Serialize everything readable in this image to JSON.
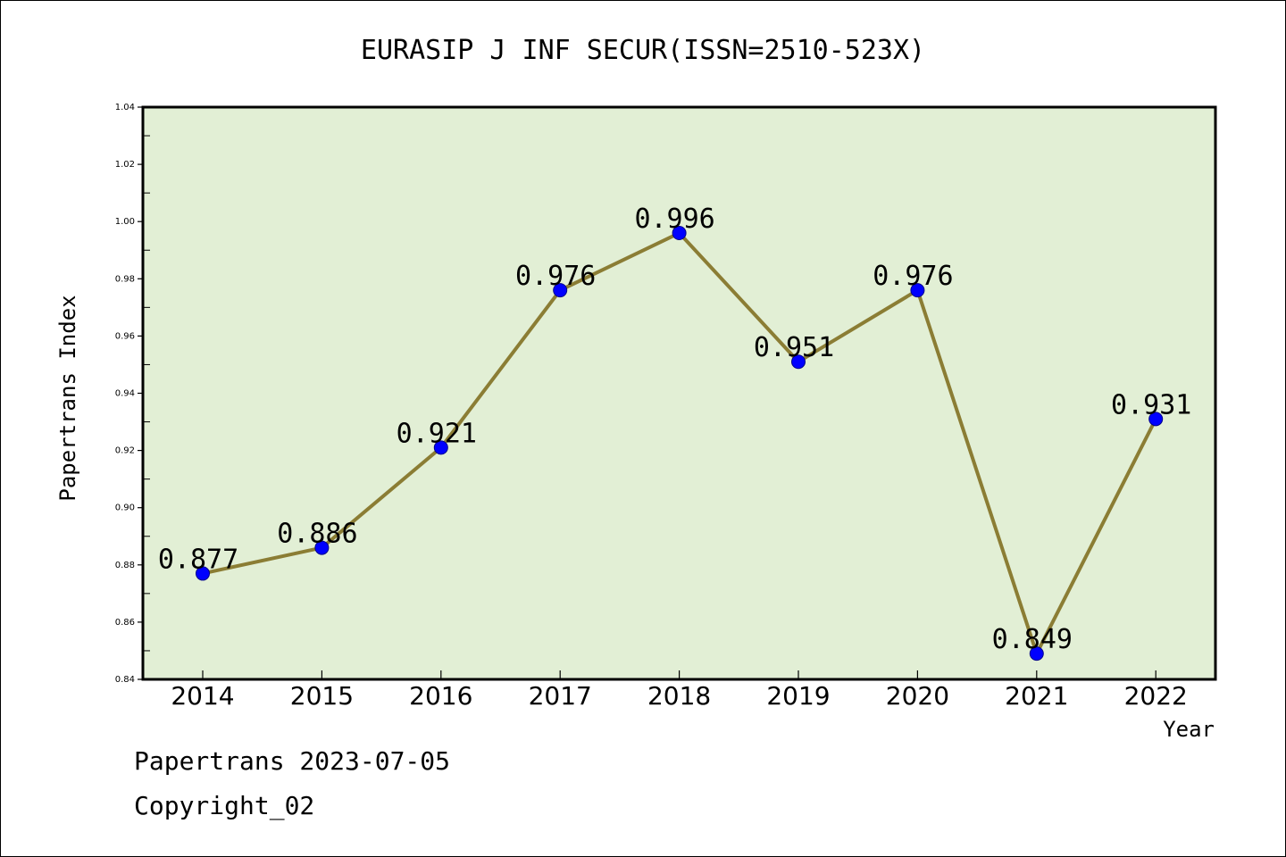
{
  "chart_data": {
    "type": "line",
    "title": "EURASIP J INF SECUR(ISSN=2510-523X)",
    "xlabel": "Year",
    "ylabel": "Papertrans Index",
    "categories": [
      "2014",
      "2015",
      "2016",
      "2017",
      "2018",
      "2019",
      "2020",
      "2021",
      "2022"
    ],
    "series": [
      {
        "values": [
          0.877,
          0.886,
          0.921,
          0.976,
          0.996,
          0.951,
          0.976,
          0.849,
          0.931
        ],
        "data_labels": [
          "0.877",
          "0.886",
          "0.921",
          "0.976",
          "0.996",
          "0.951",
          "0.976",
          "0.849",
          "0.931"
        ]
      }
    ],
    "ylim": [
      0.84,
      1.04
    ],
    "yticks": [
      "0.84",
      "0.86",
      "0.88",
      "0.90",
      "0.92",
      "0.94",
      "0.96",
      "0.98",
      "1.00",
      "1.02",
      "1.04"
    ],
    "grid": false,
    "legend": "none",
    "colors": {
      "plot_background": "#e2efd5",
      "line": "#8b7d34",
      "marker": "#0000ff",
      "marker_edge": "#00008b"
    }
  },
  "footer": {
    "date_line": "Papertrans 2023-07-05",
    "copyright_line": "Copyright_02"
  }
}
